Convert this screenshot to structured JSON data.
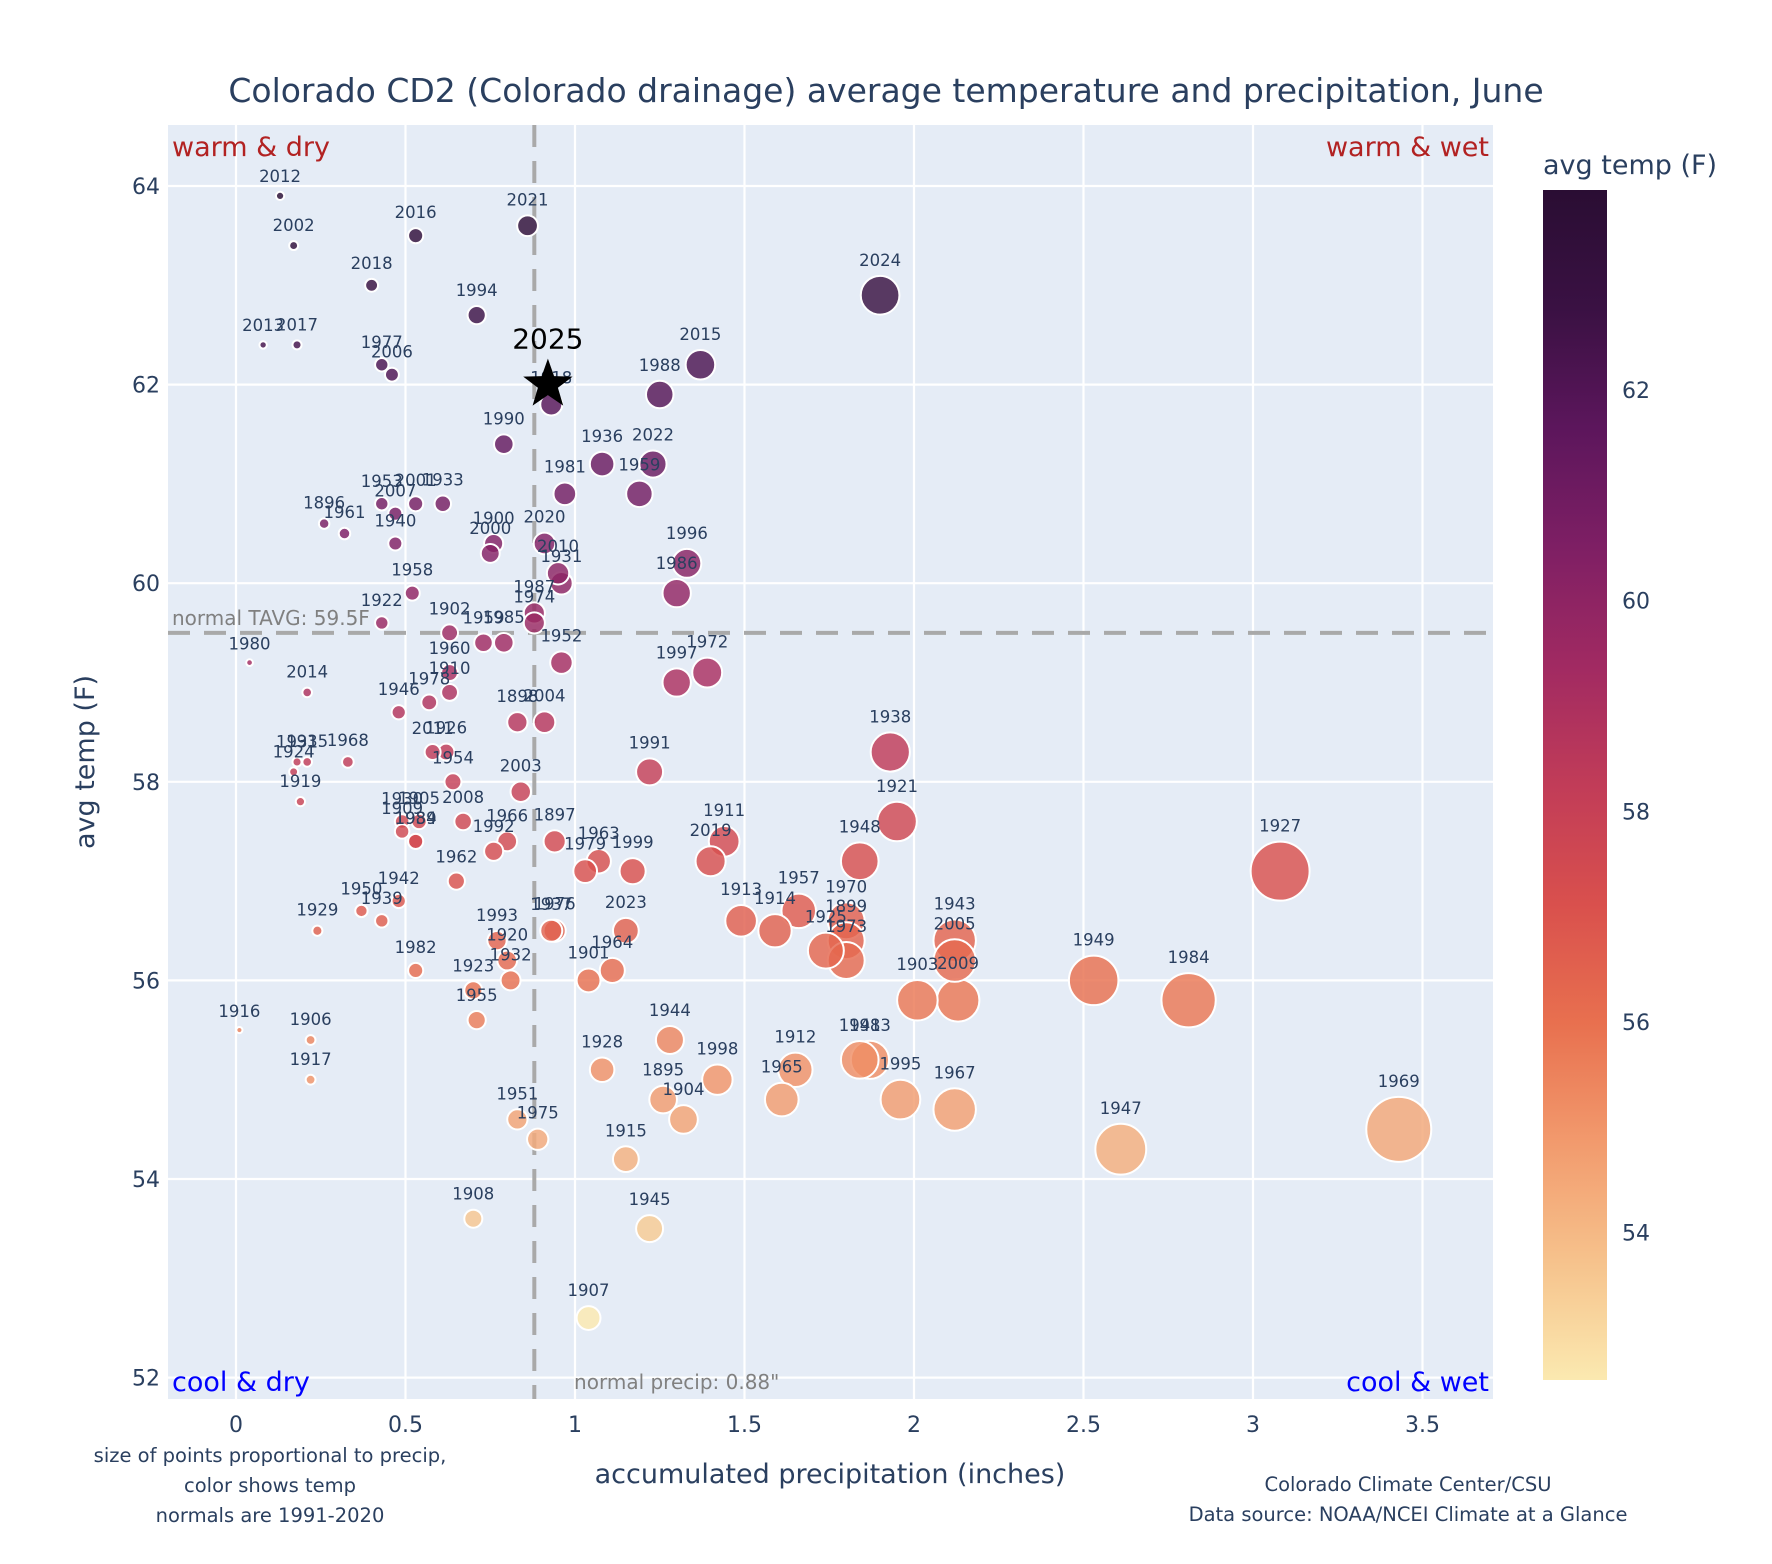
{
  "chart_data": {
    "type": "scatter",
    "title": "Colorado CD2 (Colorado drainage) average temperature and precipitation, June",
    "xlabel": "accumulated precipitation (inches)",
    "ylabel": "avg temp (F)",
    "xlim": [
      -0.2,
      3.72
    ],
    "ylim": [
      51.8,
      64.6
    ],
    "xticks": [
      0,
      0.5,
      1,
      1.5,
      2,
      2.5,
      3,
      3.5
    ],
    "xtick_labels": [
      "0",
      "0.5",
      "1",
      "1.5",
      "2",
      "2.5",
      "3",
      "3.5"
    ],
    "yticks": [
      52,
      54,
      56,
      58,
      60,
      62,
      64
    ],
    "ytick_labels": [
      "52",
      "54",
      "56",
      "58",
      "60",
      "62",
      "64"
    ],
    "grid": true,
    "colorbar": {
      "title": "avg temp (F)",
      "range": [
        52.6,
        63.9
      ],
      "ticks": [
        54,
        56,
        58,
        60,
        62
      ],
      "tick_labels": [
        "54",
        "56",
        "58",
        "60",
        "62"
      ],
      "colors": [
        "#fbe9b0",
        "#f6c28c",
        "#f29a6d",
        "#e8704f",
        "#d9504d",
        "#c13c58",
        "#a12a62",
        "#7e1f64",
        "#5c165c",
        "#3a1143",
        "#2a0d33"
      ]
    },
    "normal_temp": 59.5,
    "normal_temp_label": "normal TAVG: 59.5F",
    "normal_precip": 0.88,
    "normal_precip_label": "normal precip: 0.88\"",
    "quadrant_labels": {
      "top_left": "warm & dry",
      "top_right": "warm & wet",
      "bottom_left": "cool & dry",
      "bottom_right": "cool & wet"
    },
    "highlight": {
      "year": "2025",
      "precip": 0.92,
      "temp": 62.0
    },
    "points": [
      {
        "year": "2012",
        "precip": 0.13,
        "temp": 63.9
      },
      {
        "year": "2002",
        "precip": 0.17,
        "temp": 63.4
      },
      {
        "year": "2016",
        "precip": 0.53,
        "temp": 63.5
      },
      {
        "year": "2021",
        "precip": 0.86,
        "temp": 63.6
      },
      {
        "year": "2018",
        "precip": 0.4,
        "temp": 63.0
      },
      {
        "year": "1994",
        "precip": 0.71,
        "temp": 62.7
      },
      {
        "year": "2024",
        "precip": 1.9,
        "temp": 62.9
      },
      {
        "year": "2013",
        "precip": 0.08,
        "temp": 62.4
      },
      {
        "year": "2017",
        "precip": 0.18,
        "temp": 62.4
      },
      {
        "year": "1977",
        "precip": 0.43,
        "temp": 62.2
      },
      {
        "year": "2006",
        "precip": 0.46,
        "temp": 62.1
      },
      {
        "year": "2015",
        "precip": 1.37,
        "temp": 62.2
      },
      {
        "year": "1918",
        "precip": 0.93,
        "temp": 61.8
      },
      {
        "year": "1988",
        "precip": 1.25,
        "temp": 61.9
      },
      {
        "year": "1990",
        "precip": 0.79,
        "temp": 61.4
      },
      {
        "year": "1936",
        "precip": 1.08,
        "temp": 61.2
      },
      {
        "year": "2022",
        "precip": 1.23,
        "temp": 61.2
      },
      {
        "year": "1981",
        "precip": 0.97,
        "temp": 60.9
      },
      {
        "year": "1959",
        "precip": 1.19,
        "temp": 60.9
      },
      {
        "year": "1953",
        "precip": 0.43,
        "temp": 60.8
      },
      {
        "year": "2001",
        "precip": 0.53,
        "temp": 60.8
      },
      {
        "year": "1933",
        "precip": 0.61,
        "temp": 60.8
      },
      {
        "year": "2007",
        "precip": 0.47,
        "temp": 60.7
      },
      {
        "year": "1896",
        "precip": 0.26,
        "temp": 60.6
      },
      {
        "year": "1961",
        "precip": 0.32,
        "temp": 60.5
      },
      {
        "year": "1940",
        "precip": 0.47,
        "temp": 60.4
      },
      {
        "year": "1900",
        "precip": 0.76,
        "temp": 60.4
      },
      {
        "year": "2000",
        "precip": 0.75,
        "temp": 60.3
      },
      {
        "year": "2020",
        "precip": 0.91,
        "temp": 60.4
      },
      {
        "year": "2010",
        "precip": 0.95,
        "temp": 60.1
      },
      {
        "year": "1931",
        "precip": 0.96,
        "temp": 60.0
      },
      {
        "year": "1996",
        "precip": 1.33,
        "temp": 60.2
      },
      {
        "year": "1986",
        "precip": 1.3,
        "temp": 59.9
      },
      {
        "year": "1958",
        "precip": 0.52,
        "temp": 59.9
      },
      {
        "year": "1922",
        "precip": 0.43,
        "temp": 59.6
      },
      {
        "year": "1987",
        "precip": 0.88,
        "temp": 59.7
      },
      {
        "year": "1974",
        "precip": 0.88,
        "temp": 59.6
      },
      {
        "year": "1902",
        "precip": 0.63,
        "temp": 59.5
      },
      {
        "year": "1959b",
        "precip": 0.73,
        "temp": 59.4
      },
      {
        "year": "1985",
        "precip": 0.79,
        "temp": 59.4
      },
      {
        "year": "1952",
        "precip": 0.96,
        "temp": 59.2
      },
      {
        "year": "1972",
        "precip": 1.39,
        "temp": 59.1
      },
      {
        "year": "1997",
        "precip": 1.3,
        "temp": 59.0
      },
      {
        "year": "1980",
        "precip": 0.04,
        "temp": 59.2
      },
      {
        "year": "1960",
        "precip": 0.63,
        "temp": 59.1
      },
      {
        "year": "1910",
        "precip": 0.63,
        "temp": 58.9
      },
      {
        "year": "2014",
        "precip": 0.21,
        "temp": 58.9
      },
      {
        "year": "1978",
        "precip": 0.57,
        "temp": 58.8
      },
      {
        "year": "1946",
        "precip": 0.48,
        "temp": 58.7
      },
      {
        "year": "1898",
        "precip": 0.83,
        "temp": 58.6
      },
      {
        "year": "2004",
        "precip": 0.91,
        "temp": 58.6
      },
      {
        "year": "1938",
        "precip": 1.93,
        "temp": 58.3
      },
      {
        "year": "2011",
        "precip": 0.58,
        "temp": 58.3
      },
      {
        "year": "1926",
        "precip": 0.62,
        "temp": 58.3
      },
      {
        "year": "1931b",
        "precip": 0.18,
        "temp": 58.2
      },
      {
        "year": "1935",
        "precip": 0.21,
        "temp": 58.2
      },
      {
        "year": "1968",
        "precip": 0.33,
        "temp": 58.2
      },
      {
        "year": "1924",
        "precip": 0.17,
        "temp": 58.1
      },
      {
        "year": "1991",
        "precip": 1.22,
        "temp": 58.1
      },
      {
        "year": "1954",
        "precip": 0.64,
        "temp": 58.0
      },
      {
        "year": "2003",
        "precip": 0.84,
        "temp": 57.9
      },
      {
        "year": "1919",
        "precip": 0.19,
        "temp": 57.8
      },
      {
        "year": "1921",
        "precip": 1.95,
        "temp": 57.6
      },
      {
        "year": "2008",
        "precip": 0.67,
        "temp": 57.6
      },
      {
        "year": "1930",
        "precip": 0.49,
        "temp": 57.6
      },
      {
        "year": "1905",
        "precip": 0.54,
        "temp": 57.6
      },
      {
        "year": "1909",
        "precip": 0.49,
        "temp": 57.5
      },
      {
        "year": "1934",
        "precip": 0.53,
        "temp": 57.4
      },
      {
        "year": "1989",
        "precip": 0.53,
        "temp": 57.4
      },
      {
        "year": "1966",
        "precip": 0.8,
        "temp": 57.4
      },
      {
        "year": "1897",
        "precip": 0.94,
        "temp": 57.4
      },
      {
        "year": "1992",
        "precip": 0.76,
        "temp": 57.3
      },
      {
        "year": "1911",
        "precip": 1.44,
        "temp": 57.4
      },
      {
        "year": "2019",
        "precip": 1.4,
        "temp": 57.2
      },
      {
        "year": "1948",
        "precip": 1.84,
        "temp": 57.2
      },
      {
        "year": "1963",
        "precip": 1.07,
        "temp": 57.2
      },
      {
        "year": "1979",
        "precip": 1.03,
        "temp": 57.1
      },
      {
        "year": "1999",
        "precip": 1.17,
        "temp": 57.1
      },
      {
        "year": "1927",
        "precip": 3.08,
        "temp": 57.1
      },
      {
        "year": "1962",
        "precip": 0.65,
        "temp": 57.0
      },
      {
        "year": "1942",
        "precip": 0.48,
        "temp": 56.8
      },
      {
        "year": "1950",
        "precip": 0.37,
        "temp": 56.7
      },
      {
        "year": "1957",
        "precip": 1.66,
        "temp": 56.7
      },
      {
        "year": "1939",
        "precip": 0.43,
        "temp": 56.6
      },
      {
        "year": "1913",
        "precip": 1.49,
        "temp": 56.6
      },
      {
        "year": "1970",
        "precip": 1.8,
        "temp": 56.6
      },
      {
        "year": "1914",
        "precip": 1.59,
        "temp": 56.5
      },
      {
        "year": "1929",
        "precip": 0.24,
        "temp": 56.5
      },
      {
        "year": "1937",
        "precip": 0.93,
        "temp": 56.5
      },
      {
        "year": "1976",
        "precip": 0.94,
        "temp": 56.5
      },
      {
        "year": "2023",
        "precip": 1.15,
        "temp": 56.5
      },
      {
        "year": "1899",
        "precip": 1.8,
        "temp": 56.4
      },
      {
        "year": "1943",
        "precip": 2.12,
        "temp": 56.4
      },
      {
        "year": "1993",
        "precip": 0.77,
        "temp": 56.4
      },
      {
        "year": "1925",
        "precip": 1.74,
        "temp": 56.3
      },
      {
        "year": "1973",
        "precip": 1.8,
        "temp": 56.2
      },
      {
        "year": "2005",
        "precip": 2.12,
        "temp": 56.2
      },
      {
        "year": "1920",
        "precip": 0.8,
        "temp": 56.2
      },
      {
        "year": "1964",
        "precip": 1.11,
        "temp": 56.1
      },
      {
        "year": "1982",
        "precip": 0.53,
        "temp": 56.1
      },
      {
        "year": "1932",
        "precip": 0.81,
        "temp": 56.0
      },
      {
        "year": "1901",
        "precip": 1.04,
        "temp": 56.0
      },
      {
        "year": "1949",
        "precip": 2.53,
        "temp": 56.0
      },
      {
        "year": "1923",
        "precip": 0.7,
        "temp": 55.9
      },
      {
        "year": "1903",
        "precip": 2.01,
        "temp": 55.8
      },
      {
        "year": "2009",
        "precip": 2.13,
        "temp": 55.8
      },
      {
        "year": "1984",
        "precip": 2.81,
        "temp": 55.8
      },
      {
        "year": "1955",
        "precip": 0.71,
        "temp": 55.6
      },
      {
        "year": "1916",
        "precip": 0.01,
        "temp": 55.5
      },
      {
        "year": "1906",
        "precip": 0.22,
        "temp": 55.4
      },
      {
        "year": "1944",
        "precip": 1.28,
        "temp": 55.4
      },
      {
        "year": "1941",
        "precip": 1.84,
        "temp": 55.2
      },
      {
        "year": "1983",
        "precip": 1.87,
        "temp": 55.2
      },
      {
        "year": "1928",
        "precip": 1.08,
        "temp": 55.1
      },
      {
        "year": "1912",
        "precip": 1.65,
        "temp": 55.1
      },
      {
        "year": "1917",
        "precip": 0.22,
        "temp": 55.0
      },
      {
        "year": "1998",
        "precip": 1.42,
        "temp": 55.0
      },
      {
        "year": "1895",
        "precip": 1.26,
        "temp": 54.8
      },
      {
        "year": "1965",
        "precip": 1.61,
        "temp": 54.8
      },
      {
        "year": "1995",
        "precip": 1.96,
        "temp": 54.8
      },
      {
        "year": "1967",
        "precip": 2.12,
        "temp": 54.7
      },
      {
        "year": "1904",
        "precip": 1.32,
        "temp": 54.6
      },
      {
        "year": "1951",
        "precip": 0.83,
        "temp": 54.6
      },
      {
        "year": "1969",
        "precip": 3.43,
        "temp": 54.5
      },
      {
        "year": "1975",
        "precip": 0.89,
        "temp": 54.4
      },
      {
        "year": "1947",
        "precip": 2.61,
        "temp": 54.3
      },
      {
        "year": "1915",
        "precip": 1.15,
        "temp": 54.2
      },
      {
        "year": "1908",
        "precip": 0.7,
        "temp": 53.6
      },
      {
        "year": "1945",
        "precip": 1.22,
        "temp": 53.5
      },
      {
        "year": "1907",
        "precip": 1.04,
        "temp": 52.6
      }
    ],
    "notes": {
      "left": [
        "size of points proportional to precip,",
        "color shows temp",
        "normals are 1991-2020"
      ],
      "right": [
        "Colorado Climate Center/CSU",
        "Data source: NOAA/NCEI Climate at a Glance"
      ]
    }
  }
}
